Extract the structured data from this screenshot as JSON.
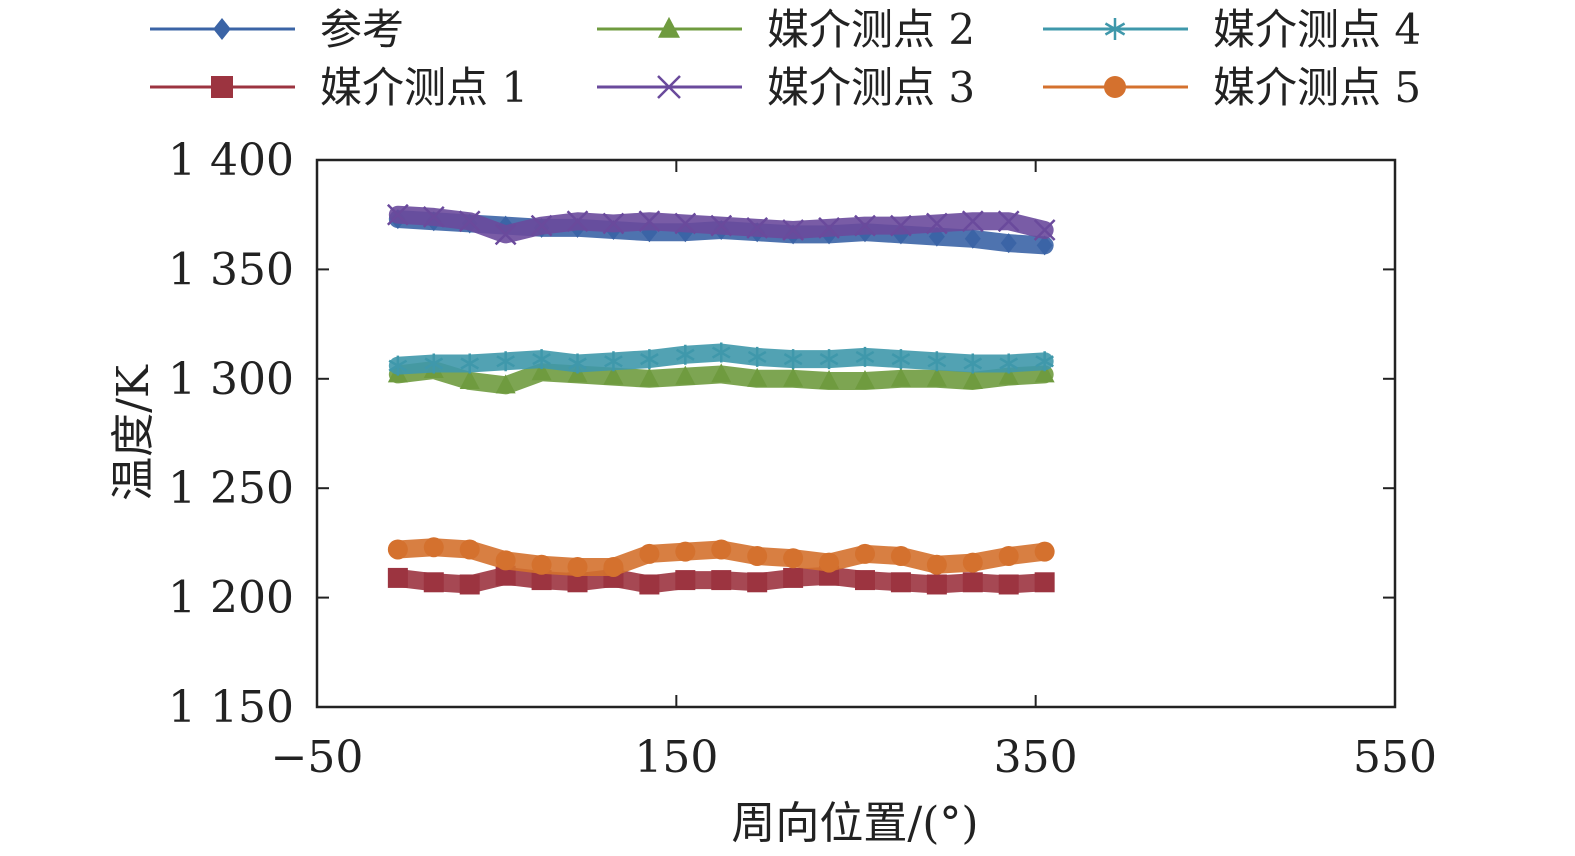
{
  "chart_data": {
    "type": "scatter",
    "title": "",
    "xlabel": "周向位置/(°)",
    "ylabel": "温度/K",
    "xlim": [
      -50,
      550
    ],
    "ylim": [
      1150,
      1400
    ],
    "xticks": [
      -50,
      150,
      350,
      550
    ],
    "xtick_labels": [
      "−50",
      "150",
      "350",
      "550"
    ],
    "yticks": [
      1150,
      1200,
      1250,
      1300,
      1350,
      1400
    ],
    "ytick_labels": [
      "1 150",
      "1 200",
      "1 250",
      "1 300",
      "1 350",
      "1 400"
    ],
    "grid": false,
    "legend_position": "top",
    "series": [
      {
        "name": "参考",
        "marker": "diamond",
        "color": "#3b64a6",
        "x": [
          -5,
          15,
          35,
          55,
          75,
          95,
          115,
          135,
          155,
          175,
          195,
          215,
          235,
          255,
          275,
          295,
          315,
          335,
          355
        ],
        "y": [
          1373,
          1372,
          1371,
          1370,
          1369,
          1369,
          1368,
          1367,
          1367,
          1368,
          1367,
          1366,
          1366,
          1367,
          1366,
          1365,
          1364,
          1362,
          1361
        ]
      },
      {
        "name": "媒介测点 1",
        "marker": "square",
        "color": "#9c3440",
        "x": [
          -5,
          15,
          35,
          55,
          75,
          95,
          115,
          135,
          155,
          175,
          195,
          215,
          235,
          255,
          275,
          295,
          315,
          335,
          355
        ],
        "y": [
          1209,
          1207,
          1206,
          1210,
          1208,
          1207,
          1209,
          1206,
          1208,
          1208,
          1207,
          1209,
          1210,
          1208,
          1207,
          1206,
          1207,
          1206,
          1207
        ]
      },
      {
        "name": "媒介测点 2",
        "marker": "triangle",
        "color": "#6f9b3f",
        "x": [
          -5,
          15,
          35,
          55,
          75,
          95,
          115,
          135,
          155,
          175,
          195,
          215,
          235,
          255,
          275,
          295,
          315,
          335,
          355
        ],
        "y": [
          1302,
          1304,
          1299,
          1297,
          1303,
          1302,
          1301,
          1300,
          1301,
          1302,
          1300,
          1300,
          1299,
          1299,
          1300,
          1300,
          1299,
          1301,
          1302
        ]
      },
      {
        "name": "媒介测点 3",
        "marker": "x",
        "color": "#6a4a9c",
        "x": [
          -5,
          15,
          35,
          55,
          75,
          95,
          115,
          135,
          155,
          175,
          195,
          215,
          235,
          255,
          275,
          295,
          315,
          335,
          355
        ],
        "y": [
          1375,
          1374,
          1372,
          1366,
          1370,
          1372,
          1371,
          1372,
          1371,
          1370,
          1369,
          1368,
          1369,
          1370,
          1370,
          1371,
          1372,
          1372,
          1368
        ]
      },
      {
        "name": "媒介测点 4",
        "marker": "asterisk",
        "color": "#3f98ab",
        "x": [
          -5,
          15,
          35,
          55,
          75,
          95,
          115,
          135,
          155,
          175,
          195,
          215,
          235,
          255,
          275,
          295,
          315,
          335,
          355
        ],
        "y": [
          1306,
          1307,
          1307,
          1308,
          1309,
          1307,
          1308,
          1309,
          1311,
          1312,
          1310,
          1309,
          1309,
          1310,
          1309,
          1308,
          1307,
          1307,
          1308
        ]
      },
      {
        "name": "媒介测点 5",
        "marker": "circle",
        "color": "#d4712e",
        "x": [
          -5,
          15,
          35,
          55,
          75,
          95,
          115,
          135,
          155,
          175,
          195,
          215,
          235,
          255,
          275,
          295,
          315,
          335,
          355
        ],
        "y": [
          1222,
          1223,
          1222,
          1217,
          1215,
          1214,
          1214,
          1220,
          1221,
          1222,
          1219,
          1218,
          1216,
          1220,
          1219,
          1215,
          1216,
          1219,
          1221
        ]
      }
    ]
  }
}
